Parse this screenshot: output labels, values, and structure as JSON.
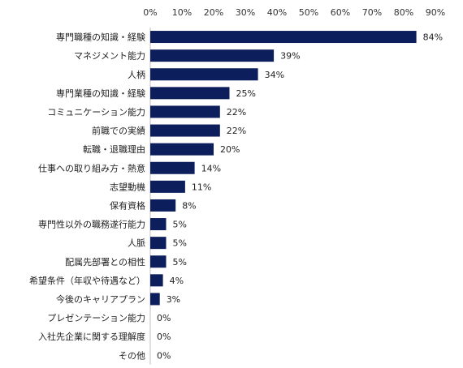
{
  "chart_data": {
    "type": "bar",
    "orientation": "horizontal",
    "categories": [
      "専門職種の知識・経験",
      "マネジメント能力",
      "人柄",
      "専門業種の知識・経験",
      "コミュニケーション能力",
      "前職での実績",
      "転職・退職理由",
      "仕事への取り組み方・熱意",
      "志望動機",
      "保有資格",
      "専門性以外の職務遂行能力",
      "人脈",
      "配属先部署との相性",
      "希望条件（年収や待遇など）",
      "今後のキャリアプラン",
      "プレゼンテーション能力",
      "入社先企業に関する理解度",
      "その他"
    ],
    "values": [
      84,
      39,
      34,
      25,
      22,
      22,
      20,
      14,
      11,
      8,
      5,
      5,
      5,
      4,
      3,
      0,
      0,
      0
    ],
    "value_labels": [
      "84%",
      "39%",
      "34%",
      "25%",
      "22%",
      "22%",
      "20%",
      "14%",
      "11%",
      "8%",
      "5%",
      "5%",
      "5%",
      "4%",
      "3%",
      "0%",
      "0%",
      "0%"
    ],
    "xlim": [
      0,
      90
    ],
    "x_ticks": [
      "0%",
      "10%",
      "20%",
      "30%",
      "40%",
      "50%",
      "60%",
      "70%",
      "80%",
      "90%"
    ],
    "x_axis_position": "top",
    "bar_color": "#0d1e5c",
    "grid": false,
    "legend": false
  }
}
